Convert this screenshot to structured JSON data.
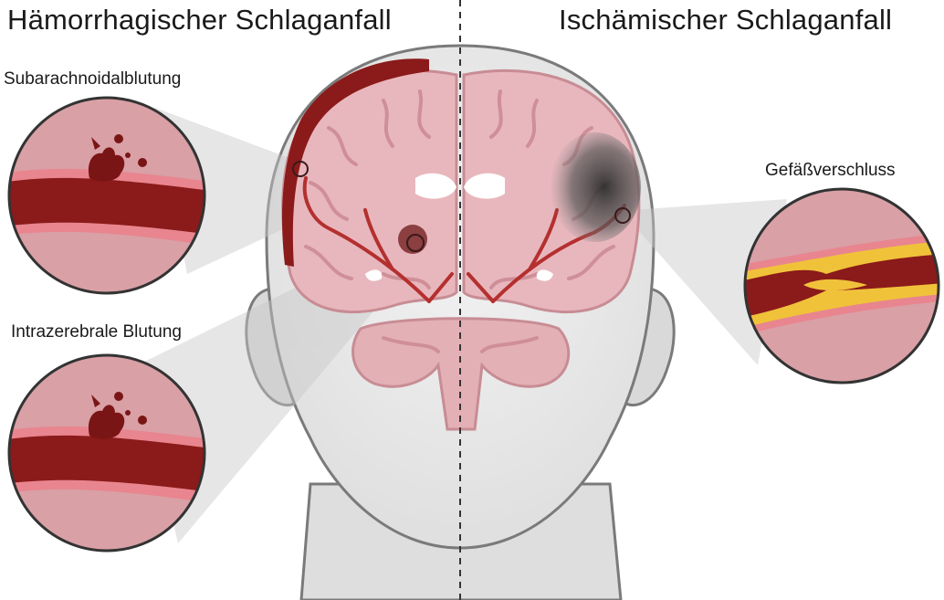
{
  "titles": {
    "left": "Hämorrhagischer Schlaganfall",
    "right": "Ischämischer Schlaganfall"
  },
  "labels": {
    "subarachnoid": "Subarachnoidalblutung",
    "intracerebral": "Intrazerebrale Blutung",
    "occlusion": "Gefäßverschluss"
  },
  "colors": {
    "brain": "#e8b7bd",
    "brain_fold": "#d4949c",
    "blood": "#8b1a1a",
    "artery": "#b4302f",
    "plaque": "#f0c23a",
    "head": "#e8e8e8",
    "head_outline": "#7a7a7a"
  }
}
